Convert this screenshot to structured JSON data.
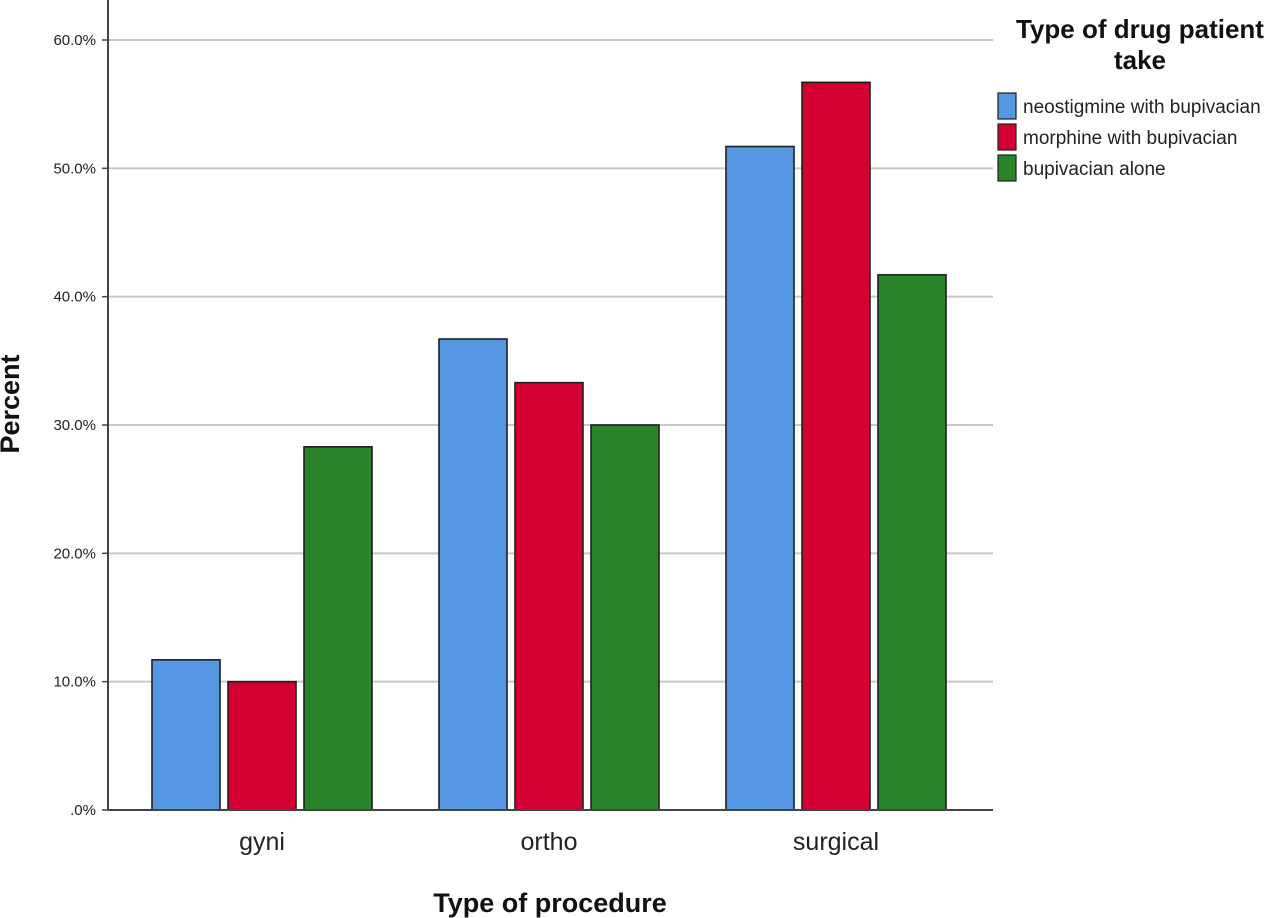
{
  "chart_data": {
    "type": "bar",
    "categories": [
      "gyni",
      "ortho",
      "surgical"
    ],
    "series": [
      {
        "name": "neostigmine with bupivacian",
        "values": [
          11.7,
          36.7,
          51.7
        ],
        "color": "#5597e3"
      },
      {
        "name": "morphine with bupivacian",
        "values": [
          10.0,
          33.3,
          56.7
        ],
        "color": "#d50032"
      },
      {
        "name": "bupivacian alone",
        "values": [
          28.3,
          30.0,
          41.7
        ],
        "color": "#2a852a"
      }
    ],
    "title": "",
    "xlabel": "Type of procedure",
    "ylabel": "Percent",
    "ylim": [
      0,
      60
    ],
    "yticks": [
      {
        "value": 0,
        "label": ".0%"
      },
      {
        "value": 10,
        "label": "10.0%"
      },
      {
        "value": 20,
        "label": "20.0%"
      },
      {
        "value": 30,
        "label": "30.0%"
      },
      {
        "value": 40,
        "label": "40.0%"
      },
      {
        "value": 50,
        "label": "50.0%"
      },
      {
        "value": 60,
        "label": "60.0%"
      }
    ],
    "grid": true,
    "legend": {
      "title_lines": [
        "Type of drug patient",
        "take"
      ],
      "placement": "top-right"
    }
  }
}
